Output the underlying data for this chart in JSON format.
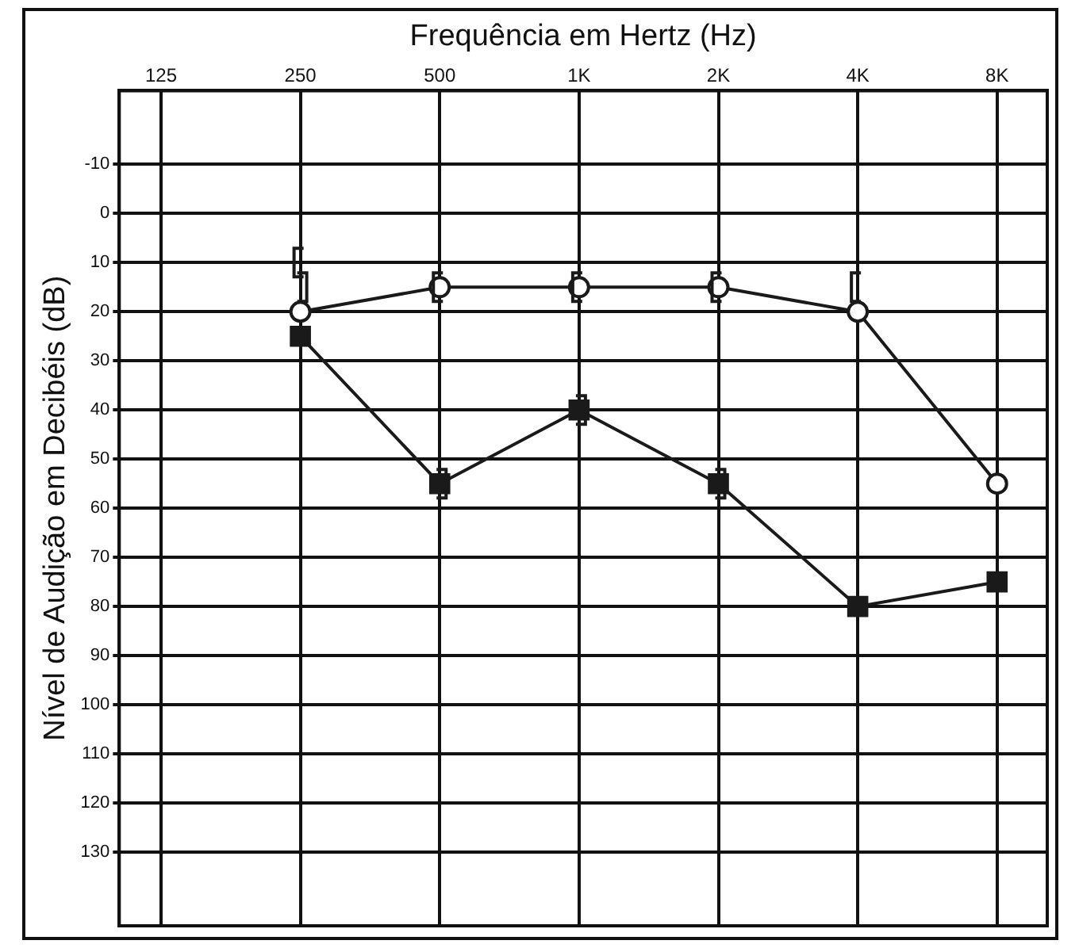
{
  "chart_data": {
    "type": "line",
    "xlabel": "Frequência em Hertz (Hz)",
    "ylabel": "Nível de Audição em Decibéis (dB)",
    "categories": [
      "125",
      "250",
      "500",
      "1K",
      "2K",
      "4K",
      "8K"
    ],
    "ylim": [
      145,
      -25
    ],
    "yticks": [
      -10,
      0,
      10,
      20,
      30,
      40,
      50,
      60,
      70,
      80,
      90,
      100,
      110,
      120,
      130
    ],
    "grid": true,
    "legend": false,
    "series": [
      {
        "marker": "circle",
        "color": "#1a1a1a",
        "values": [
          null,
          20,
          15,
          15,
          15,
          20,
          55
        ]
      },
      {
        "marker": "square",
        "color": "#1a1a1a",
        "values": [
          null,
          25,
          55,
          40,
          55,
          80,
          75
        ]
      },
      {
        "type": "scatter",
        "color": "#1a1a1a",
        "values": [
          null,
          10,
          15,
          15,
          15,
          15,
          null
        ]
      },
      {
        "type": "scatter",
        "color": "#1a1a1a",
        "values": [
          null,
          15,
          55,
          40,
          55,
          null,
          null
        ]
      }
    ]
  }
}
